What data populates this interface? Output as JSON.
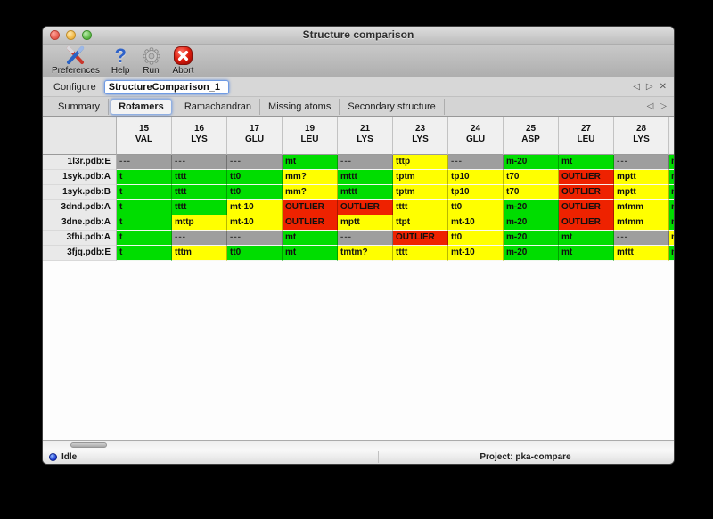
{
  "window": {
    "title": "Structure comparison"
  },
  "toolbar": {
    "preferences_label": "Preferences",
    "help_label": "Help",
    "run_label": "Run",
    "abort_label": "Abort"
  },
  "configure": {
    "label": "Configure",
    "value": "StructureComparison_1"
  },
  "pane_controls": {
    "prev": "◁",
    "next": "▷",
    "close": "✕"
  },
  "tab_controls": {
    "prev": "◁",
    "next": "▷"
  },
  "tabs": [
    {
      "label": "Summary",
      "active": false
    },
    {
      "label": "Rotamers",
      "active": true
    },
    {
      "label": "Ramachandran",
      "active": false
    },
    {
      "label": "Missing atoms",
      "active": false
    },
    {
      "label": "Secondary structure",
      "active": false
    }
  ],
  "colors": {
    "green": "#00dd00",
    "yellow": "#ffff00",
    "red": "#ee2200",
    "gray": "#9e9e9e"
  },
  "table": {
    "columns": [
      {
        "num": "15",
        "res": "VAL"
      },
      {
        "num": "16",
        "res": "LYS"
      },
      {
        "num": "17",
        "res": "GLU"
      },
      {
        "num": "19",
        "res": "LEU"
      },
      {
        "num": "21",
        "res": "LYS"
      },
      {
        "num": "23",
        "res": "LYS"
      },
      {
        "num": "24",
        "res": "GLU"
      },
      {
        "num": "25",
        "res": "ASP"
      },
      {
        "num": "27",
        "res": "LEU"
      },
      {
        "num": "28",
        "res": "LYS"
      }
    ],
    "rows": [
      {
        "label": "1l3r.pdb:E",
        "cells": [
          {
            "v": "---",
            "c": "gray"
          },
          {
            "v": "---",
            "c": "gray"
          },
          {
            "v": "---",
            "c": "gray"
          },
          {
            "v": "mt",
            "c": "green"
          },
          {
            "v": "---",
            "c": "gray"
          },
          {
            "v": "tttp",
            "c": "yellow"
          },
          {
            "v": "---",
            "c": "gray"
          },
          {
            "v": "m-20",
            "c": "green"
          },
          {
            "v": "mt",
            "c": "green"
          },
          {
            "v": "---",
            "c": "gray"
          }
        ],
        "overflow": {
          "v": "m",
          "c": "green"
        }
      },
      {
        "label": "1syk.pdb:A",
        "cells": [
          {
            "v": "t",
            "c": "green"
          },
          {
            "v": "tttt",
            "c": "green"
          },
          {
            "v": "tt0",
            "c": "green"
          },
          {
            "v": "mm?",
            "c": "yellow"
          },
          {
            "v": "mttt",
            "c": "green"
          },
          {
            "v": "tptm",
            "c": "yellow"
          },
          {
            "v": "tp10",
            "c": "yellow"
          },
          {
            "v": "t70",
            "c": "yellow"
          },
          {
            "v": "OUTLIER",
            "c": "red"
          },
          {
            "v": "mptt",
            "c": "yellow"
          }
        ],
        "overflow": {
          "v": "m",
          "c": "green"
        }
      },
      {
        "label": "1syk.pdb:B",
        "cells": [
          {
            "v": "t",
            "c": "green"
          },
          {
            "v": "tttt",
            "c": "green"
          },
          {
            "v": "tt0",
            "c": "green"
          },
          {
            "v": "mm?",
            "c": "yellow"
          },
          {
            "v": "mttt",
            "c": "green"
          },
          {
            "v": "tptm",
            "c": "yellow"
          },
          {
            "v": "tp10",
            "c": "yellow"
          },
          {
            "v": "t70",
            "c": "yellow"
          },
          {
            "v": "OUTLIER",
            "c": "red"
          },
          {
            "v": "mptt",
            "c": "yellow"
          }
        ],
        "overflow": {
          "v": "m",
          "c": "green"
        }
      },
      {
        "label": "3dnd.pdb:A",
        "cells": [
          {
            "v": "t",
            "c": "green"
          },
          {
            "v": "tttt",
            "c": "green"
          },
          {
            "v": "mt-10",
            "c": "yellow"
          },
          {
            "v": "OUTLIER",
            "c": "red"
          },
          {
            "v": "OUTLIER",
            "c": "red"
          },
          {
            "v": "tttt",
            "c": "yellow"
          },
          {
            "v": "tt0",
            "c": "yellow"
          },
          {
            "v": "m-20",
            "c": "green"
          },
          {
            "v": "OUTLIER",
            "c": "red"
          },
          {
            "v": "mtmm",
            "c": "yellow"
          }
        ],
        "overflow": {
          "v": "m",
          "c": "green"
        }
      },
      {
        "label": "3dne.pdb:A",
        "cells": [
          {
            "v": "t",
            "c": "green"
          },
          {
            "v": "mttp",
            "c": "yellow"
          },
          {
            "v": "mt-10",
            "c": "yellow"
          },
          {
            "v": "OUTLIER",
            "c": "red"
          },
          {
            "v": "mptt",
            "c": "yellow"
          },
          {
            "v": "ttpt",
            "c": "yellow"
          },
          {
            "v": "mt-10",
            "c": "yellow"
          },
          {
            "v": "m-20",
            "c": "green"
          },
          {
            "v": "OUTLIER",
            "c": "red"
          },
          {
            "v": "mtmm",
            "c": "yellow"
          }
        ],
        "overflow": {
          "v": "m",
          "c": "green"
        }
      },
      {
        "label": "3fhi.pdb:A",
        "cells": [
          {
            "v": "t",
            "c": "green"
          },
          {
            "v": "---",
            "c": "gray"
          },
          {
            "v": "---",
            "c": "gray"
          },
          {
            "v": "mt",
            "c": "green"
          },
          {
            "v": "---",
            "c": "gray"
          },
          {
            "v": "OUTLIER",
            "c": "red"
          },
          {
            "v": "tt0",
            "c": "yellow"
          },
          {
            "v": "m-20",
            "c": "green"
          },
          {
            "v": "mt",
            "c": "green"
          },
          {
            "v": "---",
            "c": "gray"
          }
        ],
        "overflow": {
          "v": "m",
          "c": "yellow"
        }
      },
      {
        "label": "3fjq.pdb:E",
        "cells": [
          {
            "v": "t",
            "c": "green"
          },
          {
            "v": "tttm",
            "c": "yellow"
          },
          {
            "v": "tt0",
            "c": "green"
          },
          {
            "v": "mt",
            "c": "green"
          },
          {
            "v": "tmtm?",
            "c": "yellow"
          },
          {
            "v": "tttt",
            "c": "yellow"
          },
          {
            "v": "mt-10",
            "c": "yellow"
          },
          {
            "v": "m-20",
            "c": "green"
          },
          {
            "v": "mt",
            "c": "green"
          },
          {
            "v": "mttt",
            "c": "yellow"
          }
        ],
        "overflow": {
          "v": "m",
          "c": "green"
        }
      }
    ]
  },
  "statusbar": {
    "status": "Idle",
    "project": "Project: pka-compare"
  }
}
